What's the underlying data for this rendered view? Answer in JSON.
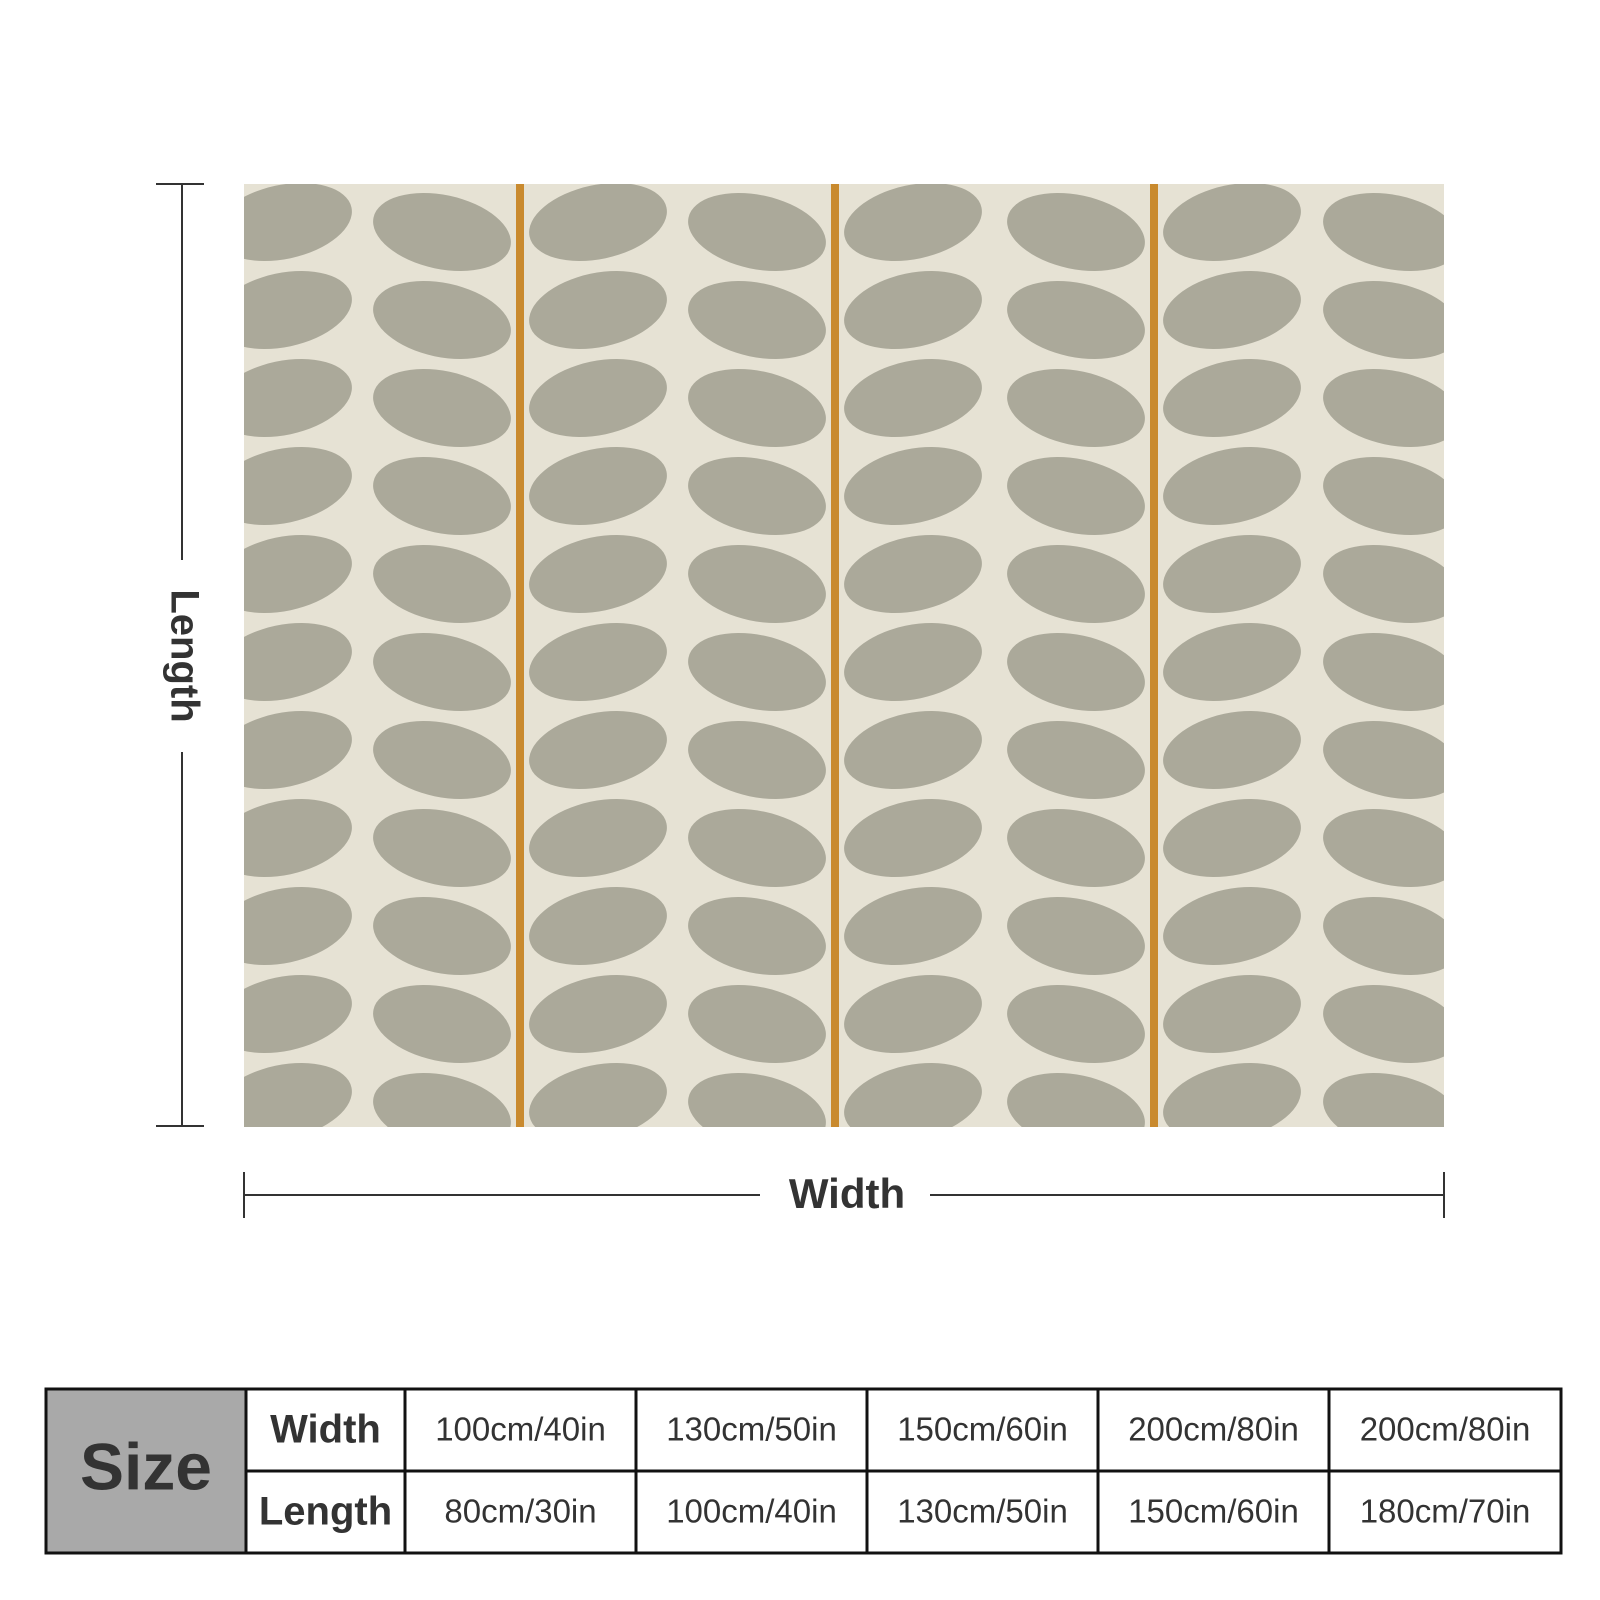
{
  "dimensions": {
    "length": "Length",
    "width": "Width"
  },
  "table": {
    "header": "Size",
    "rows": [
      {
        "label": "Width",
        "cells": [
          "100cm/40in",
          "130cm/50in",
          "150cm/60in",
          "200cm/80in",
          "200cm/80in"
        ]
      },
      {
        "label": "Length",
        "cells": [
          "80cm/30in",
          "100cm/40in",
          "130cm/50in",
          "150cm/60in",
          "180cm/70in"
        ]
      }
    ]
  }
}
